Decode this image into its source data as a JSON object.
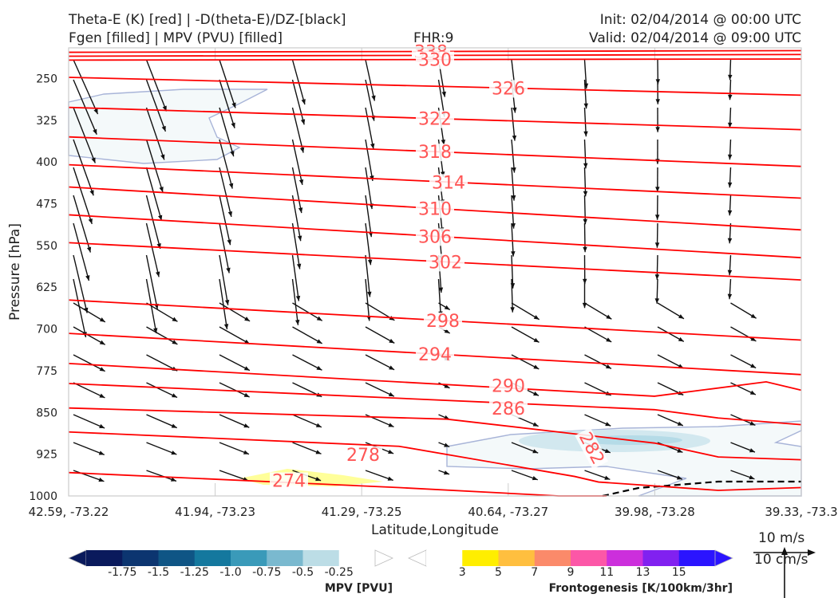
{
  "header": {
    "title_left_1": "Theta-E (K) [red] | -D(theta-E)/DZ-[black]",
    "title_left_2": "Fgen [filled] | MPV (PVU) [filled]",
    "fhr": "FHR:9",
    "init": "Init: 02/04/2014 @ 00:00 UTC",
    "valid": "Valid: 02/04/2014 @ 09:00 UTC"
  },
  "chart_data": {
    "type": "cross-section",
    "xlabel": "Latitude,Longitude",
    "ylabel": "Pressure [hPa]",
    "x_ticks": [
      "42.59, -73.22",
      "41.94, -73.23",
      "41.29, -73.25",
      "40.64, -73.27",
      "39.98, -73.28",
      "39.33, -73.3"
    ],
    "y_ticks": [
      250,
      325,
      400,
      475,
      550,
      625,
      700,
      775,
      850,
      925,
      1000
    ],
    "ylim": [
      1000,
      195
    ],
    "theta_e_contours": {
      "color": "#ff0000",
      "levels": [
        {
          "label": "334",
          "p": [
            210,
            207
          ]
        },
        {
          "label": "338",
          "p": [
            203,
            200
          ]
        },
        {
          "label": "330",
          "p": [
            217,
            215
          ]
        },
        {
          "label": "326",
          "p": [
            248,
            280
          ]
        },
        {
          "label": "322",
          "p": [
            302,
            342
          ]
        },
        {
          "label": "318",
          "p": [
            355,
            408
          ]
        },
        {
          "label": "314",
          "p": [
            405,
            465
          ]
        },
        {
          "label": "310",
          "p": [
            445,
            522
          ]
        },
        {
          "label": "306",
          "p": [
            495,
            572
          ]
        },
        {
          "label": "302",
          "p": [
            545,
            612
          ]
        },
        {
          "label": "298",
          "p": [
            648,
            720
          ]
        },
        {
          "label": "294",
          "p": [
            708,
            782
          ]
        },
        {
          "label": "290",
          "p": [
            762,
            828
          ]
        },
        {
          "label": "286",
          "p": [
            798,
            872
          ]
        },
        {
          "label": "282",
          "p": [
            842,
            935
          ]
        },
        {
          "label": "278",
          "p": [
            885,
            985
          ]
        },
        {
          "label": "274",
          "p": [
            958,
            1005
          ]
        }
      ]
    },
    "wind_vectors": "-D(theta-E)/DZ arrows (black)",
    "mpv_colorbar": {
      "label": "MPV [PVU]",
      "ticks": [
        "-1.75",
        "-1.5",
        "-1.25",
        "-1.0",
        "-0.75",
        "-0.5",
        "-0.25"
      ],
      "colors": [
        "#0a1a5c",
        "#0c3570",
        "#0f5585",
        "#14789e",
        "#3a9ab9",
        "#7ab9cf",
        "#bcdde6",
        "#ffffff"
      ]
    },
    "fgen_colorbar": {
      "label": "Frontogenesis [K/100km/3hr]",
      "ticks": [
        "3",
        "5",
        "7",
        "9",
        "11",
        "13",
        "15"
      ],
      "colors": [
        "#ffffff",
        "#ffee00",
        "#ffbf3f",
        "#fb8a6a",
        "#fc57a7",
        "#cc2fdc",
        "#8121f0",
        "#2b14ff"
      ]
    },
    "reference_vector": {
      "top": "10 m/s",
      "bottom": "10 cm/s"
    }
  }
}
